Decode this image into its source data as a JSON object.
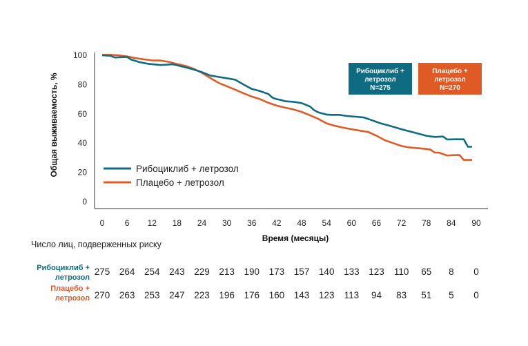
{
  "chart_data": {
    "type": "line",
    "xlabel": "Время (месяцы)",
    "ylabel": "Общая выживаемость, %",
    "xlim": [
      0,
      90
    ],
    "ylim": [
      0,
      100
    ],
    "xticks": [
      0,
      6,
      12,
      18,
      24,
      30,
      36,
      42,
      48,
      54,
      60,
      66,
      72,
      78,
      84,
      90
    ],
    "yticks": [
      0,
      20,
      40,
      60,
      80,
      100
    ],
    "grid": false,
    "legend_position": "bottom-left",
    "series": [
      {
        "name": "Рибоциклиб + летрозол",
        "color": "#0e6b82",
        "x": [
          0,
          2,
          3,
          6,
          7,
          9,
          11,
          14,
          17,
          20,
          22,
          24,
          26,
          28,
          30,
          32,
          34,
          36,
          38,
          40,
          41,
          42,
          43,
          44,
          46,
          48,
          50,
          51,
          52,
          54,
          55,
          57,
          59,
          61,
          63,
          65,
          67,
          69,
          72,
          74,
          76,
          78,
          80,
          82,
          83,
          85,
          87,
          88,
          89
        ],
        "y": [
          100,
          99.6,
          98.5,
          98.8,
          97,
          95.3,
          94.2,
          93.3,
          93.8,
          91.8,
          90.3,
          88.5,
          86.2,
          85.2,
          84.3,
          83.3,
          80,
          77,
          75.5,
          73.5,
          71,
          70,
          69.5,
          68.6,
          68.2,
          67.3,
          65,
          62.5,
          61,
          59.5,
          59.3,
          59.3,
          58.5,
          58,
          57.5,
          55.5,
          53.5,
          52,
          49.5,
          48,
          46.5,
          45,
          44.2,
          44.5,
          42.5,
          42.6,
          42.6,
          37.5,
          37.5
        ]
      },
      {
        "name": "Плацебо + летрозол",
        "color": "#e05a26",
        "x": [
          0,
          2,
          4,
          6,
          8,
          10,
          12,
          14,
          16,
          18,
          20,
          22,
          24,
          26,
          28,
          30,
          32,
          34,
          36,
          38,
          40,
          42,
          44,
          46,
          48,
          50,
          52,
          54,
          56,
          58,
          60,
          62,
          64,
          66,
          68,
          70,
          72,
          74,
          76,
          78,
          79,
          80,
          81,
          83,
          85,
          86,
          87,
          88,
          89
        ],
        "y": [
          100.3,
          100.3,
          100,
          99.2,
          98,
          97.2,
          96.5,
          96.4,
          95.5,
          94,
          92.8,
          90.8,
          88,
          84.5,
          81.2,
          78.8,
          76.5,
          74,
          71.8,
          70,
          67.5,
          65.6,
          64.2,
          63,
          61.3,
          59,
          56.5,
          53.5,
          51.8,
          50.5,
          49.5,
          48.5,
          47.6,
          45,
          42,
          40,
          38,
          37,
          36.5,
          36,
          35.5,
          33.5,
          33.5,
          31.5,
          31.8,
          31.8,
          28.5,
          28.5,
          28.5
        ]
      }
    ],
    "legend": [
      "Рибоциклиб + летрозол",
      "Плацебо + летрозол"
    ],
    "annotations": [
      {
        "lines": [
          "Рибоциклиб +",
          "летрозол",
          "N=275"
        ],
        "color": "#0e6b82"
      },
      {
        "lines": [
          "Плацебо +",
          "летрозол",
          "N=270"
        ],
        "color": "#e05a26"
      }
    ]
  },
  "risk_table": {
    "title": "Число лиц, подверженных риску",
    "rows": [
      {
        "label_lines": [
          "Рибоциклиб +",
          "летрозол"
        ],
        "color": "#0e6b82",
        "values": [
          "275",
          "264",
          "254",
          "243",
          "229",
          "213",
          "190",
          "173",
          "157",
          "140",
          "133",
          "123",
          "110",
          "65",
          "8",
          "0"
        ]
      },
      {
        "label_lines": [
          "Плацебо +",
          "летрозол"
        ],
        "color": "#e05a26",
        "values": [
          "270",
          "263",
          "253",
          "247",
          "223",
          "196",
          "176",
          "160",
          "143",
          "123",
          "113",
          "94",
          "83",
          "51",
          "5",
          "0"
        ]
      }
    ]
  }
}
